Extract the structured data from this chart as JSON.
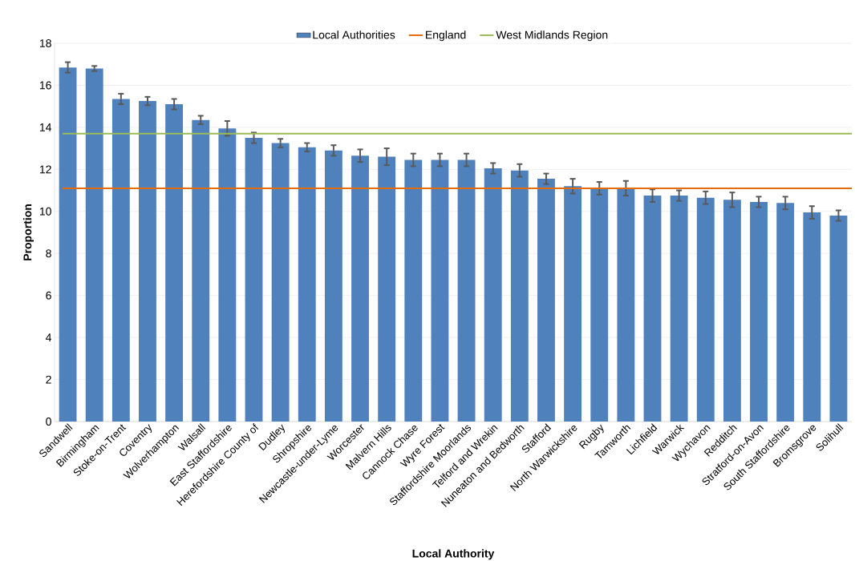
{
  "chart_data": {
    "type": "bar",
    "xlabel": "Local Authority",
    "ylabel": "Proportion",
    "categories": [
      "Sandwell",
      "Birmingham",
      "Stoke-on-Trent",
      "Coventry",
      "Wolverhampton",
      "Walsall",
      "East Staffordshire",
      "Herefordshire County of",
      "Dudley",
      "Shropshire",
      "Newcastle-under-Lyme",
      "Worcester",
      "Malvern Hills",
      "Cannock Chase",
      "Wyre Forest",
      "Staffordshire Moorlands",
      "Telford and Wrekin",
      "Nuneaton and Bedworth",
      "Stafford",
      "North Warwickshire",
      "Rugby",
      "Tamworth",
      "Lichfield",
      "Warwick",
      "Wychavon",
      "Redditch",
      "Stratford-on-Avon",
      "South Staffordshire",
      "Bromsgrove",
      "Solihull"
    ],
    "series": [
      {
        "name": "Local Authorities",
        "color": "#4f81bd",
        "values": [
          16.85,
          16.8,
          15.35,
          15.25,
          15.1,
          14.35,
          13.95,
          13.5,
          13.25,
          13.05,
          12.9,
          12.65,
          12.6,
          12.45,
          12.45,
          12.45,
          12.05,
          11.95,
          11.55,
          11.2,
          11.1,
          11.1,
          10.75,
          10.75,
          10.65,
          10.55,
          10.45,
          10.4,
          9.95,
          9.8
        ],
        "errors": [
          0.25,
          0.12,
          0.25,
          0.2,
          0.25,
          0.2,
          0.35,
          0.25,
          0.2,
          0.2,
          0.25,
          0.3,
          0.4,
          0.3,
          0.3,
          0.3,
          0.25,
          0.3,
          0.25,
          0.35,
          0.3,
          0.35,
          0.3,
          0.25,
          0.3,
          0.35,
          0.25,
          0.3,
          0.3,
          0.25
        ]
      }
    ],
    "ref_lines": [
      {
        "axis": "y",
        "value": 11.1,
        "label": "England",
        "color": "#e46c0a"
      },
      {
        "axis": "y",
        "value": 13.7,
        "label": "West Midlands Region",
        "color": "#9bbb59"
      }
    ],
    "ylim": [
      0,
      18
    ],
    "yticks": [
      0,
      2,
      4,
      6,
      8,
      10,
      12,
      14,
      16,
      18
    ],
    "grid": "y",
    "legend": "top"
  }
}
